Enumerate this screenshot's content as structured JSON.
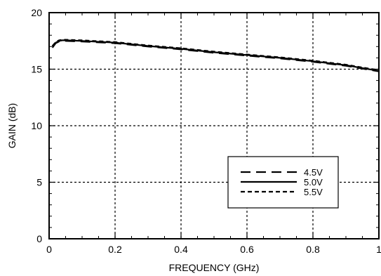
{
  "chart_data": {
    "type": "line",
    "title": "",
    "xlabel": "FREQUENCY (GHz)",
    "ylabel": "GAIN (dB)",
    "xlim": [
      0,
      1
    ],
    "ylim": [
      0,
      20
    ],
    "x_ticks": [
      "0",
      "0.2",
      "0.4",
      "0.6",
      "0.8",
      "1"
    ],
    "y_ticks": [
      "0",
      "5",
      "10",
      "15",
      "20"
    ],
    "grid": true,
    "legend_position": "right-middle",
    "series": [
      {
        "name": "4.5V",
        "style": "long-dash",
        "x": [
          0.01,
          0.02,
          0.03,
          0.04,
          0.05,
          0.1,
          0.2,
          0.3,
          0.4,
          0.5,
          0.6,
          0.7,
          0.8,
          0.9,
          1.0
        ],
        "y": [
          16.9,
          17.3,
          17.45,
          17.5,
          17.5,
          17.45,
          17.3,
          17.0,
          16.75,
          16.45,
          16.2,
          15.95,
          15.65,
          15.3,
          14.8
        ]
      },
      {
        "name": "5.0V",
        "style": "solid",
        "x": [
          0.01,
          0.02,
          0.03,
          0.04,
          0.05,
          0.1,
          0.2,
          0.3,
          0.4,
          0.5,
          0.6,
          0.7,
          0.8,
          0.9,
          1.0
        ],
        "y": [
          17.0,
          17.35,
          17.5,
          17.55,
          17.55,
          17.5,
          17.35,
          17.05,
          16.8,
          16.5,
          16.25,
          16.0,
          15.7,
          15.35,
          14.85
        ]
      },
      {
        "name": "5.5V",
        "style": "short-dash",
        "x": [
          0.01,
          0.02,
          0.03,
          0.04,
          0.05,
          0.1,
          0.2,
          0.3,
          0.4,
          0.5,
          0.6,
          0.7,
          0.8,
          0.9,
          1.0
        ],
        "y": [
          17.05,
          17.4,
          17.55,
          17.6,
          17.6,
          17.55,
          17.4,
          17.1,
          16.85,
          16.55,
          16.3,
          16.05,
          15.75,
          15.4,
          14.9
        ]
      }
    ]
  }
}
